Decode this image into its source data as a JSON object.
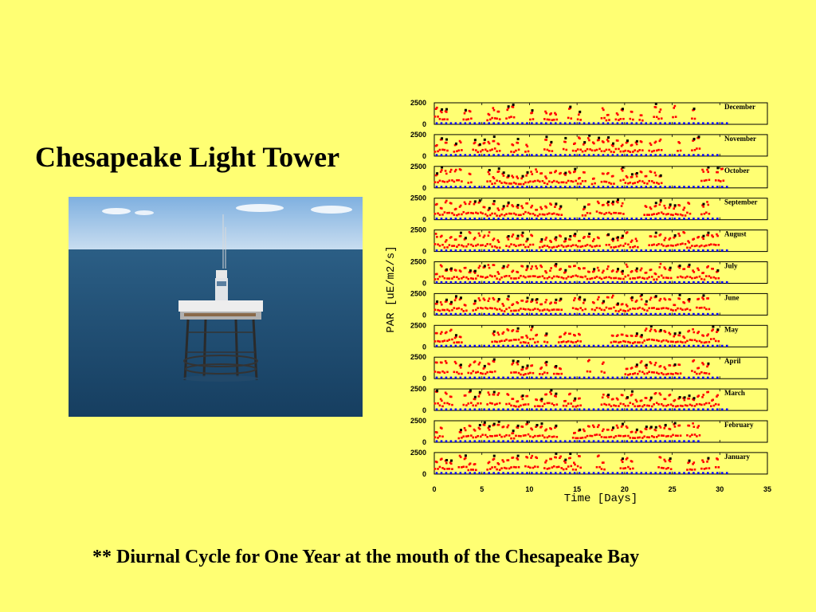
{
  "slide": {
    "title": "Chesapeake Light Tower",
    "caption": "**  Diurnal Cycle for One Year at the mouth of the Chesapeake Bay"
  },
  "photo": {
    "description_icon": "light-tower-photo",
    "colors": {
      "sky": "#9FC3E6",
      "sea": "#1F4E73"
    }
  },
  "colors": {
    "background": "#FFFF73",
    "points_red": "#FF0000",
    "points_blue": "#0000FF",
    "points_black": "#000000"
  },
  "chart_data": {
    "type": "scatter",
    "xlabel": "Time [Days]",
    "ylabel": "PAR [uE/m2/s]",
    "xlim": [
      0,
      35
    ],
    "x_ticks": [
      0,
      5,
      10,
      15,
      20,
      25,
      30,
      35
    ],
    "ylim": [
      0,
      2500
    ],
    "y_tick_labels": [
      "2500",
      "0"
    ],
    "grid": false,
    "panels": [
      {
        "month": "December",
        "days": 31,
        "active": [
          0.5,
          1,
          1.5,
          3.5,
          4,
          6,
          6.5,
          7,
          8,
          8.5,
          10.5,
          12,
          12.5,
          13,
          14.5,
          15.5,
          18,
          18.5,
          19.5,
          20,
          21,
          22,
          23.5,
          24,
          25.5,
          27.5
        ]
      },
      {
        "month": "November",
        "days": 30,
        "active": [
          0.5,
          1,
          1.5,
          2.5,
          3,
          4.5,
          5,
          5.5,
          6,
          6.5,
          7,
          8.5,
          9,
          10,
          12,
          12.5,
          14,
          15,
          15.5,
          16,
          16.5,
          17,
          17.5,
          18,
          18.5,
          19,
          19.5,
          20,
          20.5,
          21,
          21.5,
          22,
          23,
          23.5,
          24,
          26,
          27.5,
          28
        ]
      },
      {
        "month": "October",
        "days": 31,
        "active": [
          0.5,
          1,
          1.5,
          2,
          2.5,
          3,
          4,
          6,
          6.5,
          7,
          7.5,
          8,
          8.5,
          9,
          9.5,
          10,
          10.5,
          11,
          11.5,
          12,
          12.5,
          13,
          13.5,
          14,
          14.5,
          15,
          15.5,
          16,
          17,
          18,
          18.5,
          19,
          20,
          20.5,
          21,
          21.5,
          22,
          22.5,
          23,
          23.5,
          24,
          28.5,
          29,
          30,
          30.5
        ]
      },
      {
        "month": "September",
        "days": 30,
        "active": [
          0.5,
          1,
          1.5,
          2,
          2.5,
          3,
          3.5,
          4,
          4.5,
          5,
          5.5,
          6,
          6.5,
          7,
          7.5,
          8,
          8.5,
          9,
          9.5,
          10,
          10.5,
          11,
          11.5,
          12,
          12.5,
          13,
          13.5,
          16,
          16.5,
          17.5,
          18,
          18.5,
          19,
          19.5,
          20,
          22.5,
          23,
          23.5,
          24,
          24.5,
          25,
          25.5,
          26,
          26.5,
          27,
          28.5,
          29
        ]
      },
      {
        "month": "August",
        "days": 31,
        "active": [
          0.5,
          1,
          1.5,
          2,
          2.5,
          3,
          3.5,
          4,
          4.5,
          5,
          5.5,
          6,
          6.5,
          7,
          8,
          8.5,
          9,
          9.5,
          10,
          10.5,
          11.5,
          12,
          12.5,
          13,
          13.5,
          14,
          14.5,
          15,
          15.5,
          16,
          16.5,
          17,
          17.5,
          18.5,
          19,
          19.5,
          20,
          20.5,
          21,
          21.5,
          23,
          23.5,
          24,
          24.5,
          25,
          25.5,
          26,
          26.5,
          27,
          27.5,
          28,
          28.5,
          29,
          29.5,
          30
        ]
      },
      {
        "month": "July",
        "days": 31,
        "active": [
          0.5,
          1,
          1.5,
          2,
          2.5,
          3,
          3.5,
          4,
          4.5,
          5,
          5.5,
          6,
          6.5,
          7,
          7.5,
          8,
          8.5,
          9,
          9.5,
          10,
          10.5,
          11,
          11.5,
          12,
          12.5,
          13,
          13.5,
          14,
          14.5,
          15,
          15.5,
          16,
          16.5,
          17,
          17.5,
          18,
          18.5,
          19,
          19.5,
          20,
          20.5,
          21,
          21.5,
          22,
          22.5,
          23,
          23.5,
          24,
          24.5,
          25,
          26,
          26.5,
          27,
          27.5,
          28,
          28.5,
          29,
          29.5,
          30
        ]
      },
      {
        "month": "June",
        "days": 30,
        "active": [
          0.5,
          1,
          1.5,
          2,
          2.5,
          3,
          3.5,
          4.5,
          5,
          5.5,
          6,
          6.5,
          7,
          7.5,
          8,
          8.5,
          9,
          9.5,
          10,
          10.5,
          11,
          11.5,
          12,
          12.5,
          13,
          13.5,
          15,
          15.5,
          16,
          17,
          17.5,
          18,
          18.5,
          19,
          19.5,
          20,
          20.5,
          21,
          21.5,
          22,
          22.5,
          23,
          23.5,
          24,
          24.5,
          25,
          25.5,
          26,
          26.5,
          27,
          28,
          28.5,
          29
        ]
      },
      {
        "month": "May",
        "days": 31,
        "active": [
          0.5,
          1,
          1.5,
          2,
          2.5,
          3,
          6.5,
          7,
          7.5,
          8,
          8.5,
          9,
          9.5,
          10,
          10.5,
          11,
          12,
          13.5,
          14,
          14.5,
          15,
          15.5,
          19,
          19.5,
          20,
          20.5,
          21,
          21.5,
          22,
          22.5,
          23,
          23.5,
          24,
          24.5,
          25,
          25.5,
          26,
          26.5,
          27,
          27.5,
          28,
          28.5,
          29,
          29.5,
          30
        ]
      },
      {
        "month": "April",
        "days": 30,
        "active": [
          0.5,
          1,
          1.5,
          2.5,
          3,
          4,
          4.5,
          5,
          5.5,
          6,
          6.5,
          8.5,
          9,
          9.5,
          10,
          10.5,
          11.5,
          12,
          13,
          13.5,
          16.5,
          18,
          20.5,
          21,
          21.5,
          22,
          22.5,
          23,
          23.5,
          24,
          24.5,
          25,
          25.5,
          26,
          27.5,
          28,
          28.5,
          29
        ]
      },
      {
        "month": "March",
        "days": 31,
        "active": [
          0.5,
          1,
          1.5,
          2,
          3.5,
          4,
          4.5,
          5,
          6,
          6.5,
          7,
          8,
          8.5,
          9,
          9.5,
          10,
          11,
          11.5,
          12,
          12.5,
          13,
          14,
          14.5,
          15,
          15.5,
          18,
          18.5,
          19,
          19.5,
          20,
          20.5,
          21,
          21.5,
          22,
          22.5,
          23,
          23.5,
          24,
          24.5,
          25,
          25.5,
          26,
          26.5,
          27,
          27.5,
          28,
          28.5,
          29,
          29.5,
          30
        ]
      },
      {
        "month": "February",
        "days": 28,
        "active": [
          0.5,
          1,
          3,
          3.5,
          4,
          4.5,
          5,
          5.5,
          6,
          6.5,
          7,
          7.5,
          8,
          8.5,
          9,
          9.5,
          10,
          10.5,
          11,
          11.5,
          12,
          12.5,
          13,
          15,
          15.5,
          16,
          16.5,
          17,
          17.5,
          18,
          18.5,
          19,
          19.5,
          20,
          20.5,
          21,
          21.5,
          22,
          22.5,
          23,
          23.5,
          24,
          24.5,
          25,
          25.5,
          26,
          27,
          27.5,
          28
        ]
      },
      {
        "month": "January",
        "days": 31,
        "active": [
          0.5,
          1,
          1.5,
          2,
          3,
          3.5,
          4,
          4.5,
          6,
          6.5,
          7,
          7.5,
          8,
          8.5,
          9,
          10,
          10.5,
          11,
          12,
          12.5,
          13,
          13.5,
          14,
          14.5,
          15,
          15.5,
          17.5,
          18,
          20,
          20.5,
          21,
          24,
          24.5,
          25,
          27,
          27.5,
          28.5,
          29,
          30
        ]
      }
    ]
  }
}
